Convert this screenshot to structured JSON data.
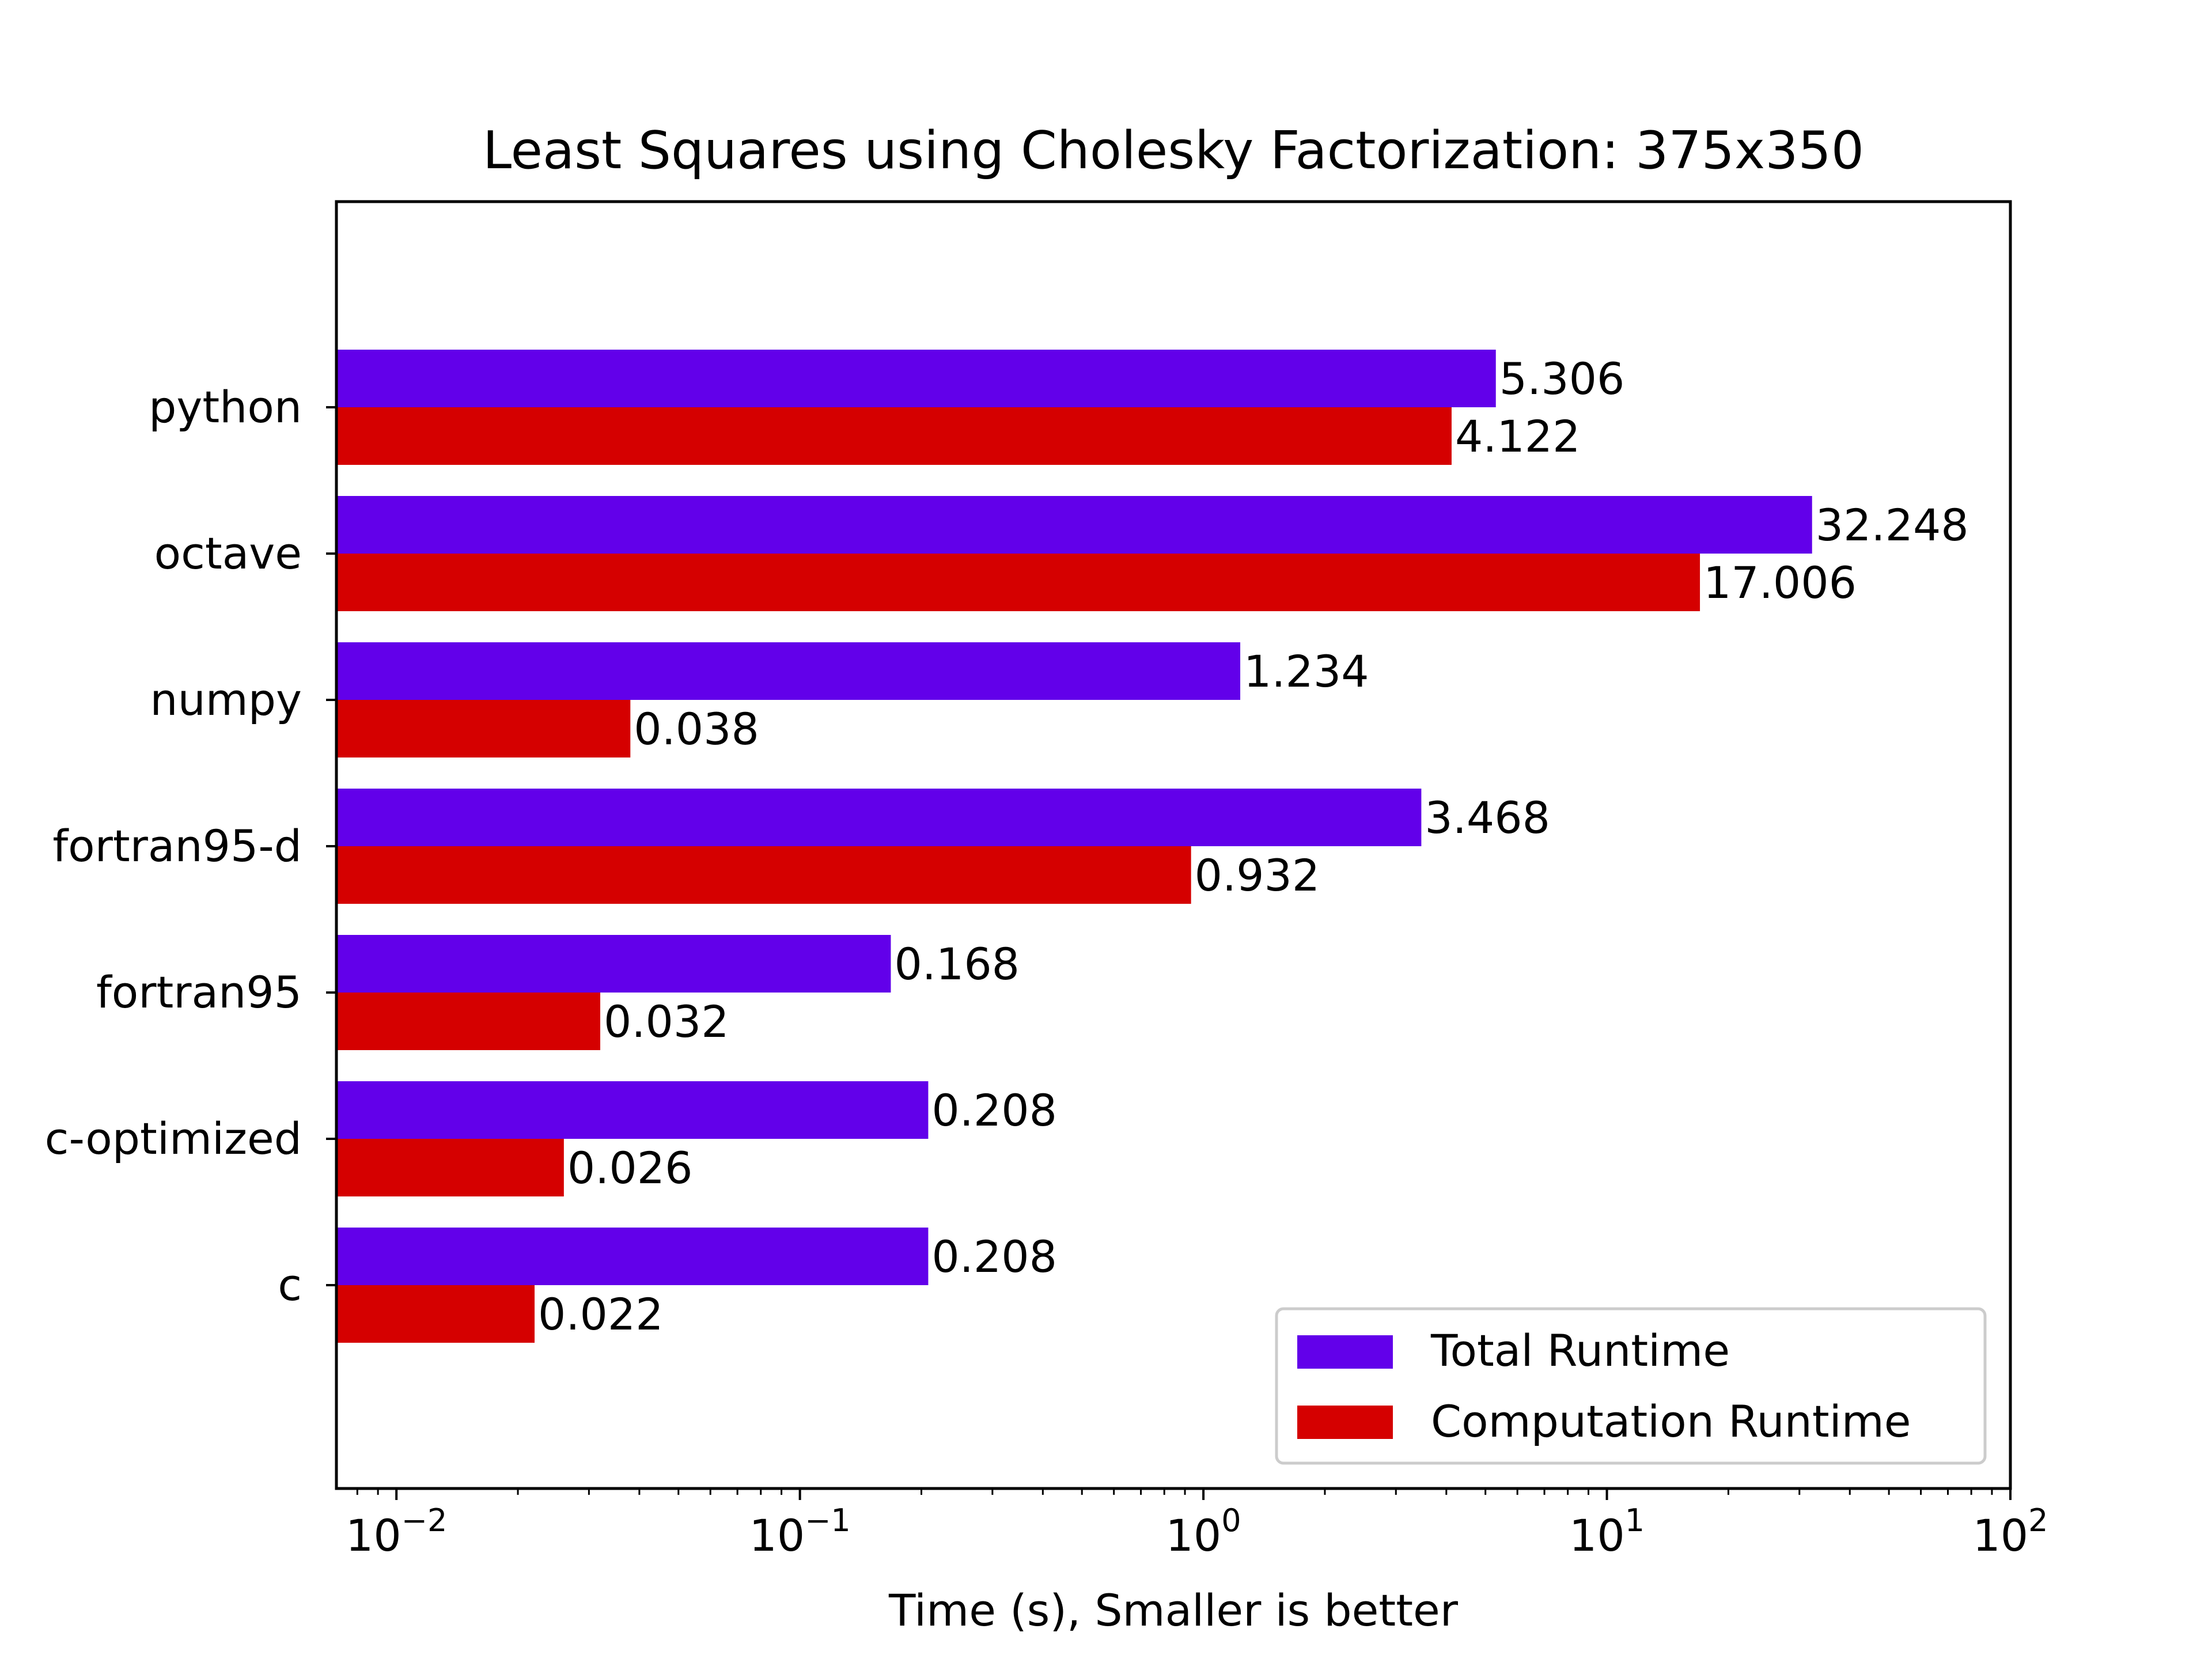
{
  "chart_data": {
    "type": "bar",
    "orientation": "horizontal",
    "title": "Least Squares using Cholesky Factorization: 375x350",
    "xlabel": "Time (s), Smaller is better",
    "ylabel": "",
    "xscale": "log",
    "xlim": [
      0.0071,
      100
    ],
    "x_ticks": [
      {
        "base": "10",
        "exp": "−2"
      },
      {
        "base": "10",
        "exp": "−1"
      },
      {
        "base": "10",
        "exp": "0"
      },
      {
        "base": "10",
        "exp": "1"
      },
      {
        "base": "10",
        "exp": "2"
      }
    ],
    "categories": [
      "python",
      "octave",
      "numpy",
      "fortran95-d",
      "fortran95",
      "c-optimized",
      "c"
    ],
    "series": [
      {
        "name": "Total Runtime",
        "color": "#6200ea",
        "values": [
          5.306,
          32.248,
          1.234,
          3.468,
          0.168,
          0.208,
          0.208
        ],
        "labels": [
          "5.306",
          "32.248",
          "1.234",
          "3.468",
          "0.168",
          "0.208",
          "0.208"
        ]
      },
      {
        "name": "Computation Runtime",
        "color": "#d50000",
        "values": [
          4.122,
          17.006,
          0.038,
          0.932,
          0.032,
          0.026,
          0.022
        ],
        "labels": [
          "4.122",
          "17.006",
          "0.038",
          "0.932",
          "0.032",
          "0.026",
          "0.022"
        ]
      }
    ],
    "legend": {
      "position": "lower-right"
    },
    "grid": false
  }
}
